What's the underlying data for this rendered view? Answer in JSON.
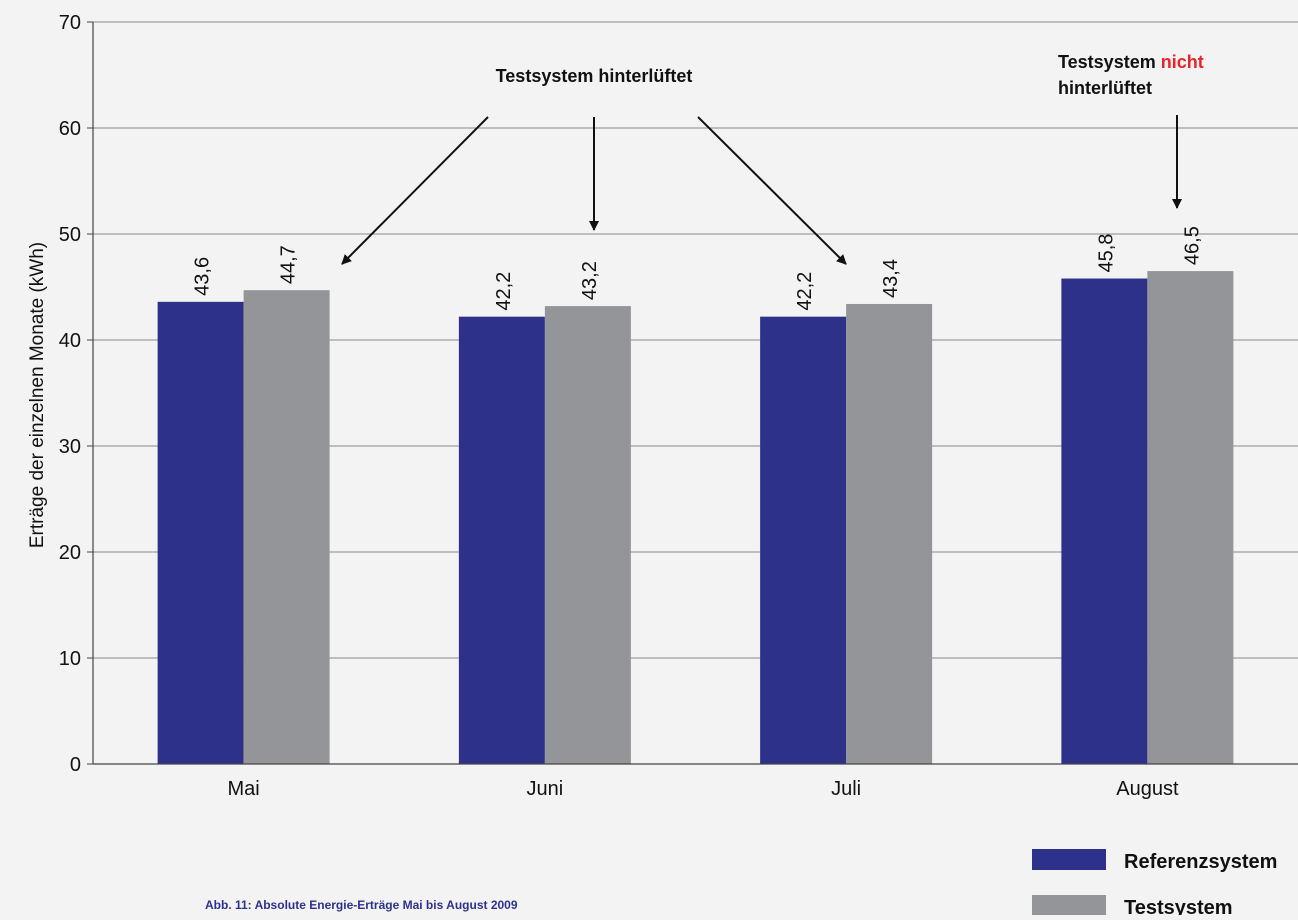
{
  "chart_data": {
    "type": "bar",
    "title": "",
    "ylabel": "Erträge der einzelnen Monate (kWh)",
    "xlabel": "",
    "ylim": [
      0,
      70
    ],
    "yticks": [
      0,
      10,
      20,
      30,
      40,
      50,
      60,
      70
    ],
    "categories": [
      "Mai",
      "Juni",
      "Juli",
      "August"
    ],
    "series": [
      {
        "name": "Referenzsystem",
        "values": [
          43.6,
          42.2,
          42.2,
          45.8
        ],
        "labels": [
          "43,6",
          "42,2",
          "42,2",
          "45,8"
        ],
        "color": "#2e3189"
      },
      {
        "name": "Testsystem",
        "values": [
          44.7,
          43.2,
          43.4,
          46.5
        ],
        "labels": [
          "44,7",
          "43,2",
          "43,4",
          "46,5"
        ],
        "color": "#939598"
      }
    ],
    "grid": true,
    "legend_position": "bottom-right",
    "annotations": {
      "hinterlueftet": "Testsystem hinterlüftet",
      "nicht_line1_prefix": "Testsystem ",
      "nicht_line1_highlight": "nicht",
      "nicht_line2": "hinterlüftet",
      "highlight_color": "#e8232a"
    },
    "caption": "Abb. 11: Absolute Energie-Erträge Mai bis August 2009"
  }
}
